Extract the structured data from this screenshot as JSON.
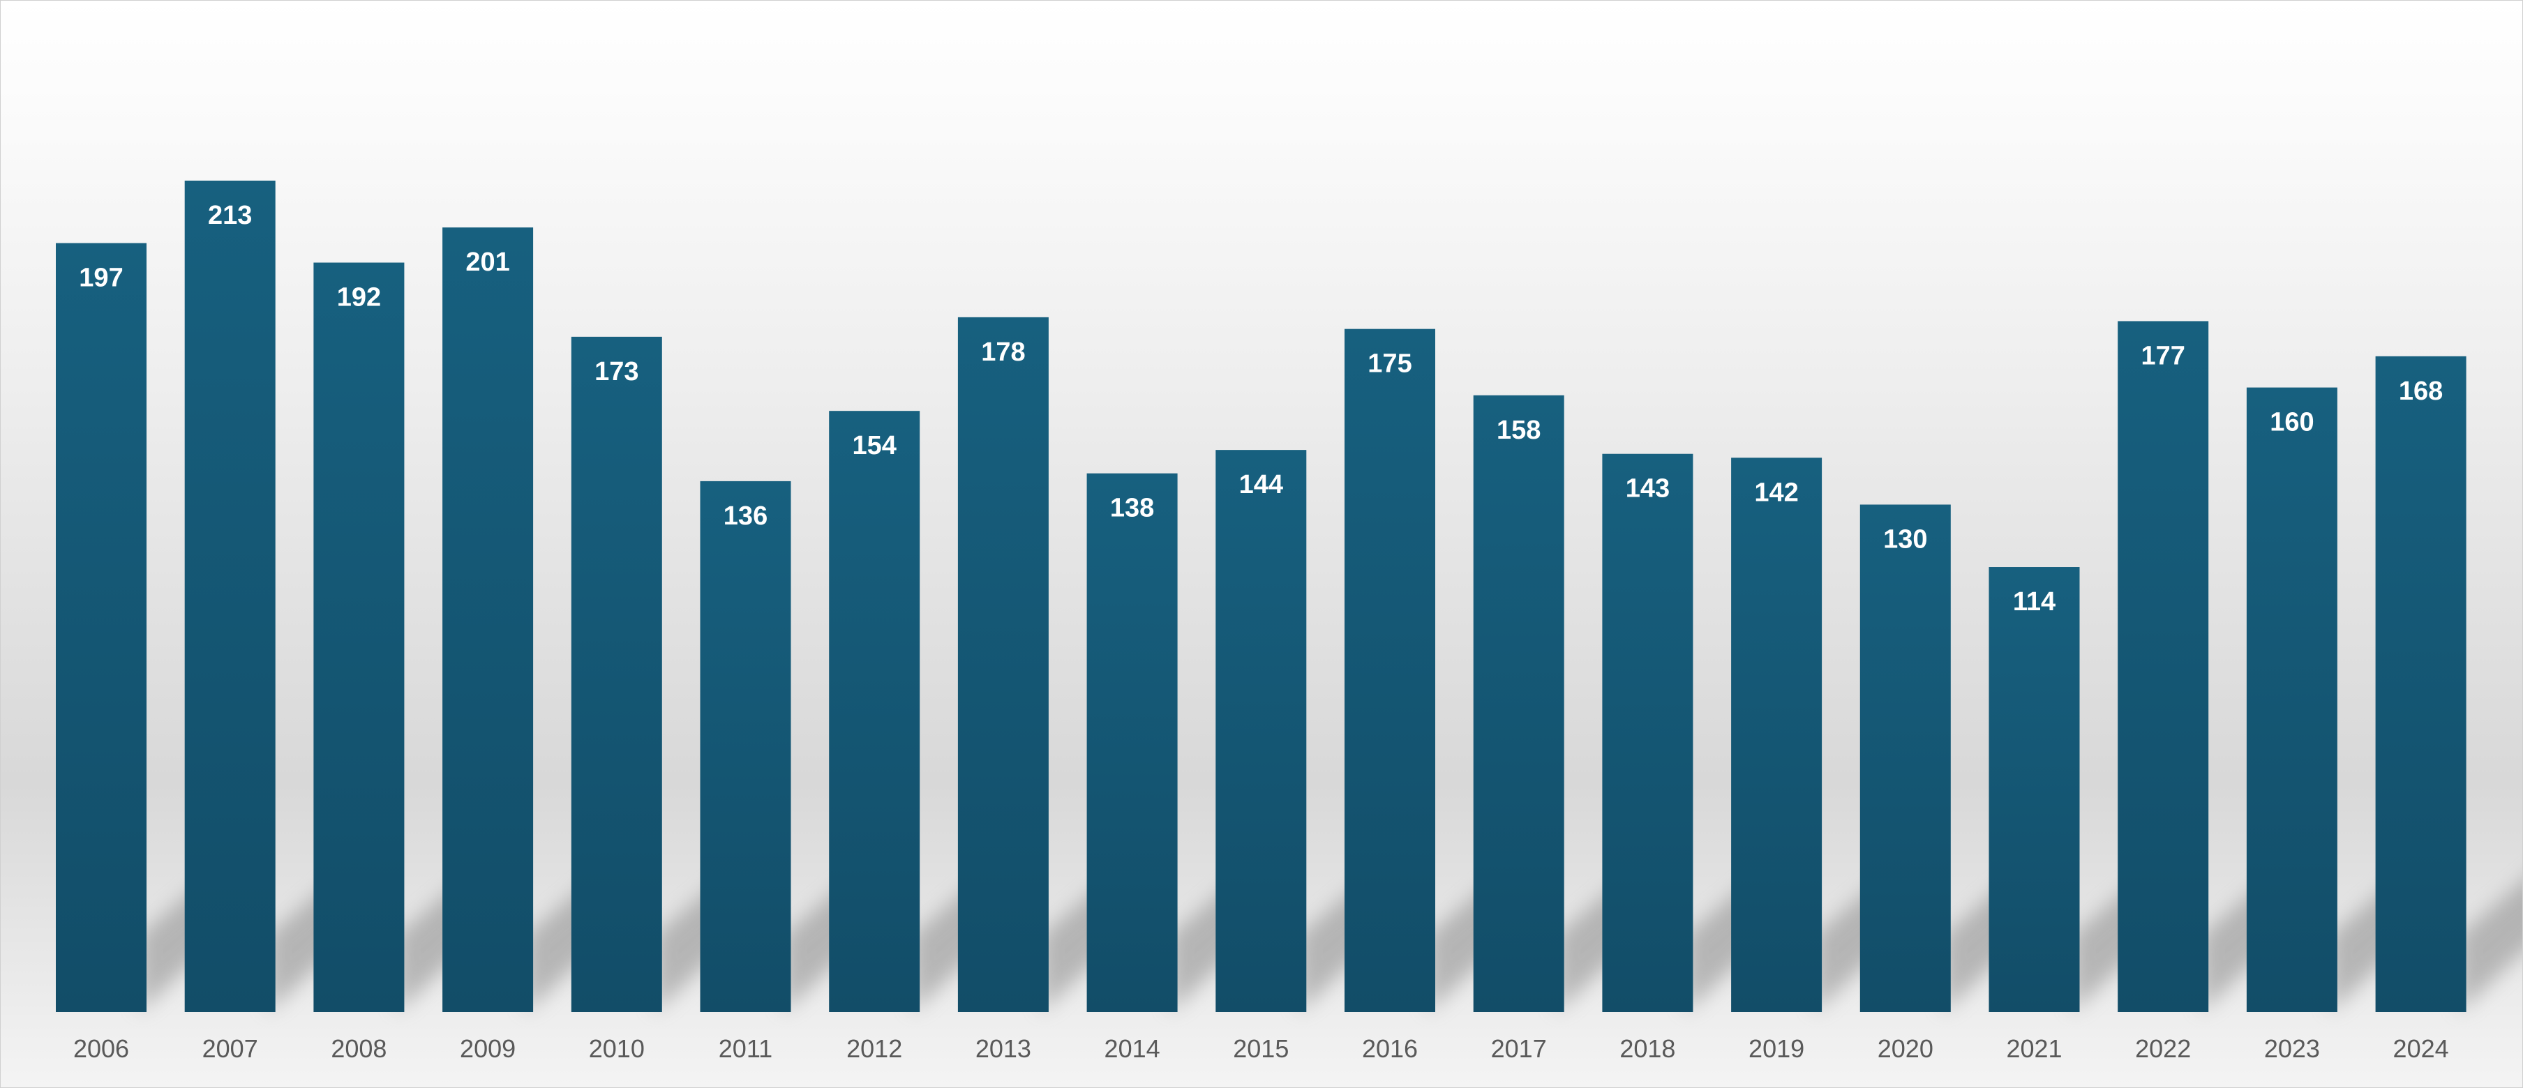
{
  "chart_data": {
    "type": "bar",
    "title": "",
    "xlabel": "",
    "ylabel": "",
    "categories": [
      "2006",
      "2007",
      "2008",
      "2009",
      "2010",
      "2011",
      "2012",
      "2013",
      "2014",
      "2015",
      "2016",
      "2017",
      "2018",
      "2019",
      "2020",
      "2021",
      "2022",
      "2023",
      "2024"
    ],
    "values": [
      197,
      213,
      192,
      201,
      173,
      136,
      154,
      178,
      138,
      144,
      175,
      158,
      143,
      142,
      130,
      114,
      177,
      160,
      168
    ],
    "ylim": [
      0,
      213
    ],
    "grid": false,
    "legend": "none",
    "data_labels": true,
    "colors": {
      "bar_top": "#17607f",
      "bar_bottom": "#124d68",
      "data_label": "#ffffff",
      "tick_label": "#595959"
    }
  }
}
